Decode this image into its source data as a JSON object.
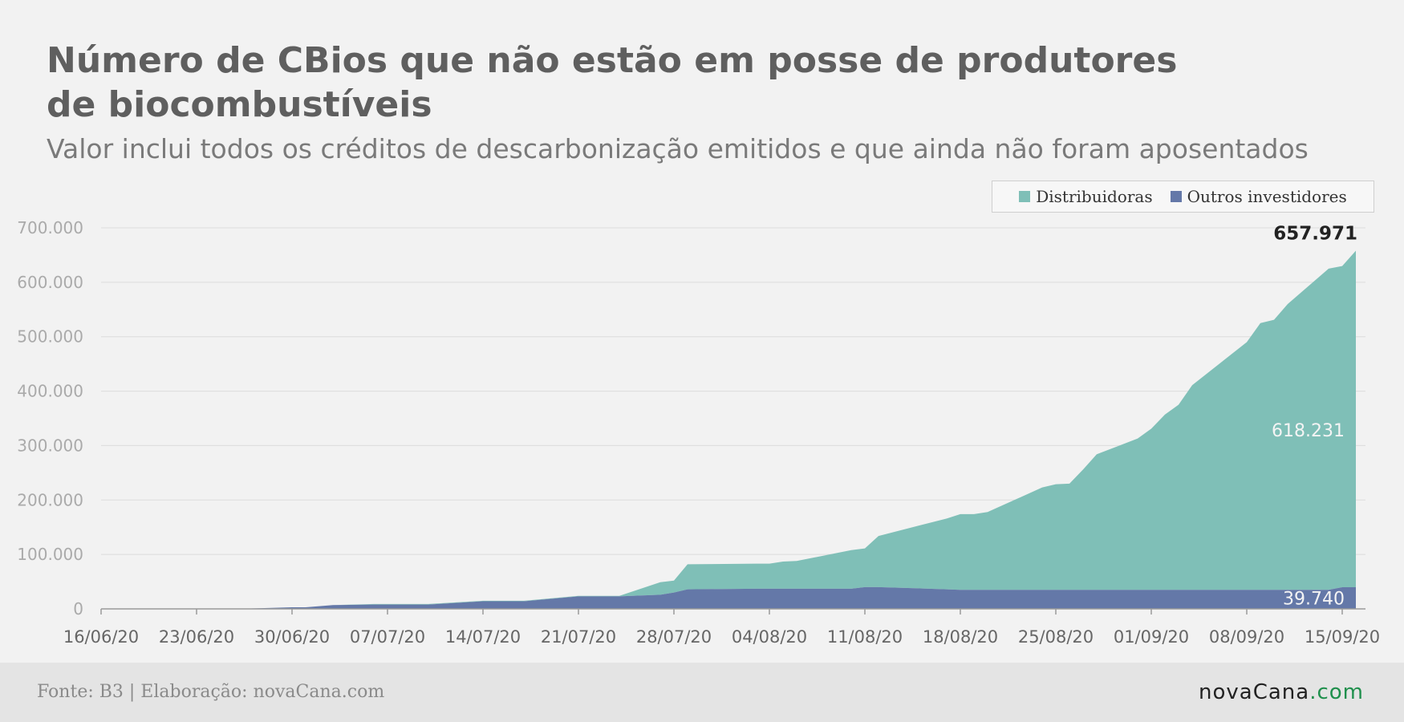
{
  "header": {
    "title": "Número de CBios que não estão em posse de  produtores de biocombustíveis",
    "subtitle": "Valor inclui todos os créditos de descarbonização emitidos e que ainda não foram aposentados"
  },
  "legend": {
    "items": [
      {
        "label": "Distribuidoras",
        "color": "#7fbfb7"
      },
      {
        "label": "Outros investidores",
        "color": "#6478a8"
      }
    ]
  },
  "footer": {
    "source": "Fonte: B3 | Elaboração: novaCana.com",
    "brand_name": "novaCana",
    "brand_suffix": ".com"
  },
  "chart_data": {
    "type": "area",
    "stacked": true,
    "x_start": "2020-06-16",
    "ylim": [
      0,
      700000
    ],
    "yticks": [
      0,
      100000,
      200000,
      300000,
      400000,
      500000,
      600000,
      700000
    ],
    "ytick_labels": [
      "0",
      "100.000",
      "200.000",
      "300.000",
      "400.000",
      "500.000",
      "600.000",
      "700.000"
    ],
    "xtick_labels": [
      "16/06/20",
      "23/06/20",
      "30/06/20",
      "07/07/20",
      "14/07/20",
      "21/07/20",
      "28/07/20",
      "04/08/20",
      "11/08/20",
      "18/08/20",
      "25/08/20",
      "01/09/20",
      "08/09/20",
      "15/09/20"
    ],
    "grid": true,
    "legend_position": "top-right",
    "x_dates": [
      "2020-06-26",
      "2020-06-30",
      "2020-07-01",
      "2020-07-03",
      "2020-07-06",
      "2020-07-10",
      "2020-07-14",
      "2020-07-17",
      "2020-07-21",
      "2020-07-24",
      "2020-07-27",
      "2020-07-28",
      "2020-07-29",
      "2020-08-03",
      "2020-08-04",
      "2020-08-05",
      "2020-08-06",
      "2020-08-10",
      "2020-08-11",
      "2020-08-12",
      "2020-08-17",
      "2020-08-18",
      "2020-08-19",
      "2020-08-20",
      "2020-08-24",
      "2020-08-25",
      "2020-08-26",
      "2020-08-27",
      "2020-08-28",
      "2020-08-31",
      "2020-09-01",
      "2020-09-02",
      "2020-09-03",
      "2020-09-04",
      "2020-09-08",
      "2020-09-09",
      "2020-09-10",
      "2020-09-11",
      "2020-09-14",
      "2020-09-15",
      "2020-09-16"
    ],
    "series": [
      {
        "name": "Outros investidores",
        "color": "#6478a8",
        "values": [
          0,
          3000,
          3000,
          7000,
          8000,
          8000,
          14000,
          14000,
          23000,
          23000,
          26000,
          30000,
          36000,
          37000,
          37000,
          37000,
          37000,
          37000,
          40000,
          40000,
          36000,
          35000,
          35000,
          35000,
          35000,
          35000,
          35000,
          35000,
          35000,
          35000,
          35000,
          35000,
          35000,
          35000,
          35000,
          35000,
          35000,
          35000,
          35000,
          39740,
          39740
        ]
      },
      {
        "name": "Distribuidoras",
        "color": "#7fbfb7",
        "values": [
          0,
          0,
          0,
          0,
          1000,
          1000,
          1000,
          1000,
          1000,
          1000,
          23000,
          22000,
          46000,
          46000,
          46000,
          50000,
          51000,
          71000,
          71000,
          94000,
          130000,
          139000,
          139000,
          143000,
          188000,
          194000,
          195000,
          221000,
          249000,
          278000,
          296000,
          322000,
          340000,
          376000,
          455000,
          490000,
          496000,
          525000,
          590000,
          590000,
          618231
        ]
      }
    ],
    "annotations": [
      {
        "label": "657.971",
        "series": "total"
      },
      {
        "label": "618.231",
        "series": "Distribuidoras"
      },
      {
        "label": "39.740",
        "series": "Outros investidores"
      }
    ]
  }
}
